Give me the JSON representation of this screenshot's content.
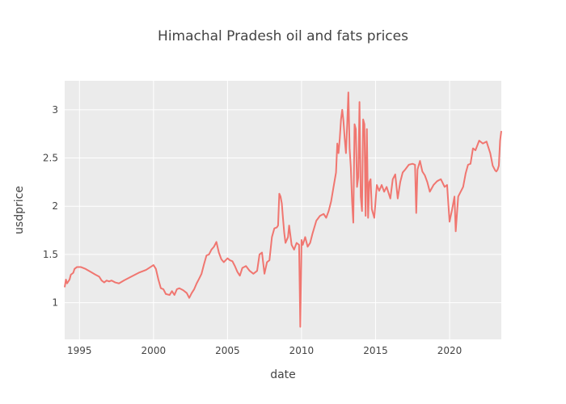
{
  "chart_data": {
    "type": "line",
    "title": "Himachal Pradesh oil and fats prices",
    "xlabel": "date",
    "ylabel": "usdprice",
    "xlim": [
      "1994-01-01",
      "2023-07-01"
    ],
    "ylim": [
      0.62,
      3.3
    ],
    "grid": true,
    "x_ticks": [
      {
        "date": "1995-01-01",
        "label": "1995"
      },
      {
        "date": "2000-01-01",
        "label": "2000"
      },
      {
        "date": "2005-01-01",
        "label": "2005"
      },
      {
        "date": "2010-01-01",
        "label": "2010"
      },
      {
        "date": "2015-01-01",
        "label": "2015"
      },
      {
        "date": "2020-01-01",
        "label": "2020"
      }
    ],
    "y_ticks": [
      {
        "value": 1,
        "label": "1"
      },
      {
        "value": 1.5,
        "label": "1.5"
      },
      {
        "value": 2,
        "label": "2"
      },
      {
        "value": 2.5,
        "label": "2.5"
      },
      {
        "value": 3,
        "label": "3"
      }
    ],
    "series": [
      {
        "color": "#F07670",
        "points": [
          [
            "1994-01-01",
            1.16
          ],
          [
            "1994-02-01",
            1.24
          ],
          [
            "1994-03-01",
            1.2
          ],
          [
            "1994-05-01",
            1.24
          ],
          [
            "1994-06-01",
            1.29
          ],
          [
            "1994-08-01",
            1.31
          ],
          [
            "1994-09-01",
            1.35
          ],
          [
            "1994-11-01",
            1.37
          ],
          [
            "1995-02-01",
            1.37
          ],
          [
            "1995-06-01",
            1.35
          ],
          [
            "1995-10-01",
            1.32
          ],
          [
            "1996-02-01",
            1.29
          ],
          [
            "1996-05-01",
            1.27
          ],
          [
            "1996-07-01",
            1.23
          ],
          [
            "1996-09-01",
            1.21
          ],
          [
            "1996-11-01",
            1.23
          ],
          [
            "1997-01-01",
            1.22
          ],
          [
            "1997-03-01",
            1.23
          ],
          [
            "1997-06-01",
            1.21
          ],
          [
            "1997-09-01",
            1.2
          ],
          [
            "1998-01-01",
            1.23
          ],
          [
            "1998-07-01",
            1.27
          ],
          [
            "1999-01-01",
            1.31
          ],
          [
            "1999-07-01",
            1.34
          ],
          [
            "2000-01-01",
            1.39
          ],
          [
            "2000-03-01",
            1.35
          ],
          [
            "2000-05-01",
            1.24
          ],
          [
            "2000-07-01",
            1.15
          ],
          [
            "2000-09-01",
            1.14
          ],
          [
            "2000-11-01",
            1.09
          ],
          [
            "2001-02-01",
            1.08
          ],
          [
            "2001-04-01",
            1.12
          ],
          [
            "2001-06-01",
            1.08
          ],
          [
            "2001-08-01",
            1.14
          ],
          [
            "2001-10-01",
            1.15
          ],
          [
            "2002-01-01",
            1.13
          ],
          [
            "2002-04-01",
            1.1
          ],
          [
            "2002-06-01",
            1.05
          ],
          [
            "2002-08-01",
            1.1
          ],
          [
            "2002-10-01",
            1.14
          ],
          [
            "2002-12-01",
            1.2
          ],
          [
            "2003-02-01",
            1.25
          ],
          [
            "2003-04-01",
            1.3
          ],
          [
            "2003-06-01",
            1.4
          ],
          [
            "2003-08-01",
            1.49
          ],
          [
            "2003-10-01",
            1.5
          ],
          [
            "2003-12-01",
            1.55
          ],
          [
            "2004-02-01",
            1.58
          ],
          [
            "2004-04-01",
            1.63
          ],
          [
            "2004-06-01",
            1.52
          ],
          [
            "2004-08-01",
            1.45
          ],
          [
            "2004-10-01",
            1.42
          ],
          [
            "2005-01-01",
            1.46
          ],
          [
            "2005-03-01",
            1.44
          ],
          [
            "2005-05-01",
            1.43
          ],
          [
            "2005-07-01",
            1.38
          ],
          [
            "2005-09-01",
            1.32
          ],
          [
            "2005-11-01",
            1.28
          ],
          [
            "2006-01-01",
            1.36
          ],
          [
            "2006-04-01",
            1.38
          ],
          [
            "2006-07-01",
            1.33
          ],
          [
            "2006-10-01",
            1.3
          ],
          [
            "2007-01-01",
            1.33
          ],
          [
            "2007-03-01",
            1.5
          ],
          [
            "2007-05-01",
            1.52
          ],
          [
            "2007-07-01",
            1.3
          ],
          [
            "2007-09-01",
            1.42
          ],
          [
            "2007-11-01",
            1.44
          ],
          [
            "2008-01-01",
            1.68
          ],
          [
            "2008-03-01",
            1.77
          ],
          [
            "2008-05-01",
            1.78
          ],
          [
            "2008-06-01",
            1.8
          ],
          [
            "2008-07-01",
            2.13
          ],
          [
            "2008-08-01",
            2.1
          ],
          [
            "2008-09-01",
            2.03
          ],
          [
            "2008-10-01",
            1.87
          ],
          [
            "2008-11-01",
            1.72
          ],
          [
            "2008-12-01",
            1.62
          ],
          [
            "2009-02-01",
            1.68
          ],
          [
            "2009-03-01",
            1.8
          ],
          [
            "2009-05-01",
            1.6
          ],
          [
            "2009-07-01",
            1.55
          ],
          [
            "2009-09-01",
            1.62
          ],
          [
            "2009-11-01",
            1.6
          ],
          [
            "2009-12-01",
            0.75
          ],
          [
            "2010-01-01",
            1.65
          ],
          [
            "2010-02-01",
            1.6
          ],
          [
            "2010-04-01",
            1.68
          ],
          [
            "2010-06-01",
            1.58
          ],
          [
            "2010-08-01",
            1.62
          ],
          [
            "2010-10-01",
            1.72
          ],
          [
            "2011-01-01",
            1.85
          ],
          [
            "2011-04-01",
            1.9
          ],
          [
            "2011-07-01",
            1.92
          ],
          [
            "2011-09-01",
            1.88
          ],
          [
            "2011-11-01",
            1.95
          ],
          [
            "2012-01-01",
            2.05
          ],
          [
            "2012-03-01",
            2.2
          ],
          [
            "2012-05-01",
            2.35
          ],
          [
            "2012-06-01",
            2.65
          ],
          [
            "2012-07-01",
            2.55
          ],
          [
            "2012-08-01",
            2.7
          ],
          [
            "2012-09-01",
            2.9
          ],
          [
            "2012-10-01",
            3.0
          ],
          [
            "2012-11-01",
            2.88
          ],
          [
            "2012-12-01",
            2.7
          ],
          [
            "2013-01-01",
            2.55
          ],
          [
            "2013-02-01",
            2.85
          ],
          [
            "2013-03-01",
            3.18
          ],
          [
            "2013-04-01",
            2.6
          ],
          [
            "2013-05-01",
            2.4
          ],
          [
            "2013-06-01",
            2.05
          ],
          [
            "2013-07-01",
            1.83
          ],
          [
            "2013-08-01",
            2.85
          ],
          [
            "2013-09-01",
            2.8
          ],
          [
            "2013-10-01",
            2.2
          ],
          [
            "2013-11-01",
            2.3
          ],
          [
            "2013-12-01",
            3.08
          ],
          [
            "2014-01-01",
            2.1
          ],
          [
            "2014-02-01",
            1.95
          ],
          [
            "2014-03-01",
            2.9
          ],
          [
            "2014-04-01",
            2.85
          ],
          [
            "2014-05-01",
            1.9
          ],
          [
            "2014-06-01",
            2.8
          ],
          [
            "2014-07-01",
            1.88
          ],
          [
            "2014-08-01",
            2.25
          ],
          [
            "2014-09-01",
            2.28
          ],
          [
            "2014-10-01",
            1.97
          ],
          [
            "2014-12-01",
            1.88
          ],
          [
            "2015-02-01",
            2.22
          ],
          [
            "2015-04-01",
            2.16
          ],
          [
            "2015-06-01",
            2.22
          ],
          [
            "2015-08-01",
            2.15
          ],
          [
            "2015-10-01",
            2.2
          ],
          [
            "2016-01-01",
            2.08
          ],
          [
            "2016-03-01",
            2.28
          ],
          [
            "2016-05-01",
            2.33
          ],
          [
            "2016-07-01",
            2.08
          ],
          [
            "2016-09-01",
            2.25
          ],
          [
            "2016-11-01",
            2.35
          ],
          [
            "2017-01-01",
            2.38
          ],
          [
            "2017-04-01",
            2.43
          ],
          [
            "2017-07-01",
            2.44
          ],
          [
            "2017-09-01",
            2.43
          ],
          [
            "2017-10-01",
            1.93
          ],
          [
            "2017-11-01",
            2.38
          ],
          [
            "2018-01-01",
            2.47
          ],
          [
            "2018-03-01",
            2.36
          ],
          [
            "2018-05-01",
            2.32
          ],
          [
            "2018-07-01",
            2.25
          ],
          [
            "2018-09-01",
            2.15
          ],
          [
            "2018-12-01",
            2.22
          ],
          [
            "2019-03-01",
            2.26
          ],
          [
            "2019-06-01",
            2.28
          ],
          [
            "2019-09-01",
            2.2
          ],
          [
            "2019-11-01",
            2.22
          ],
          [
            "2020-01-01",
            1.84
          ],
          [
            "2020-03-01",
            1.96
          ],
          [
            "2020-05-01",
            2.1
          ],
          [
            "2020-06-01",
            1.74
          ],
          [
            "2020-08-01",
            2.1
          ],
          [
            "2020-10-01",
            2.15
          ],
          [
            "2020-12-01",
            2.2
          ],
          [
            "2021-02-01",
            2.34
          ],
          [
            "2021-04-01",
            2.43
          ],
          [
            "2021-06-01",
            2.44
          ],
          [
            "2021-08-01",
            2.6
          ],
          [
            "2021-10-01",
            2.58
          ],
          [
            "2022-01-01",
            2.68
          ],
          [
            "2022-04-01",
            2.65
          ],
          [
            "2022-07-01",
            2.67
          ],
          [
            "2022-10-01",
            2.55
          ],
          [
            "2022-12-01",
            2.42
          ],
          [
            "2023-02-01",
            2.37
          ],
          [
            "2023-03-01",
            2.36
          ],
          [
            "2023-04-01",
            2.38
          ],
          [
            "2023-05-01",
            2.42
          ],
          [
            "2023-06-01",
            2.68
          ],
          [
            "2023-07-01",
            2.78
          ]
        ]
      }
    ]
  }
}
